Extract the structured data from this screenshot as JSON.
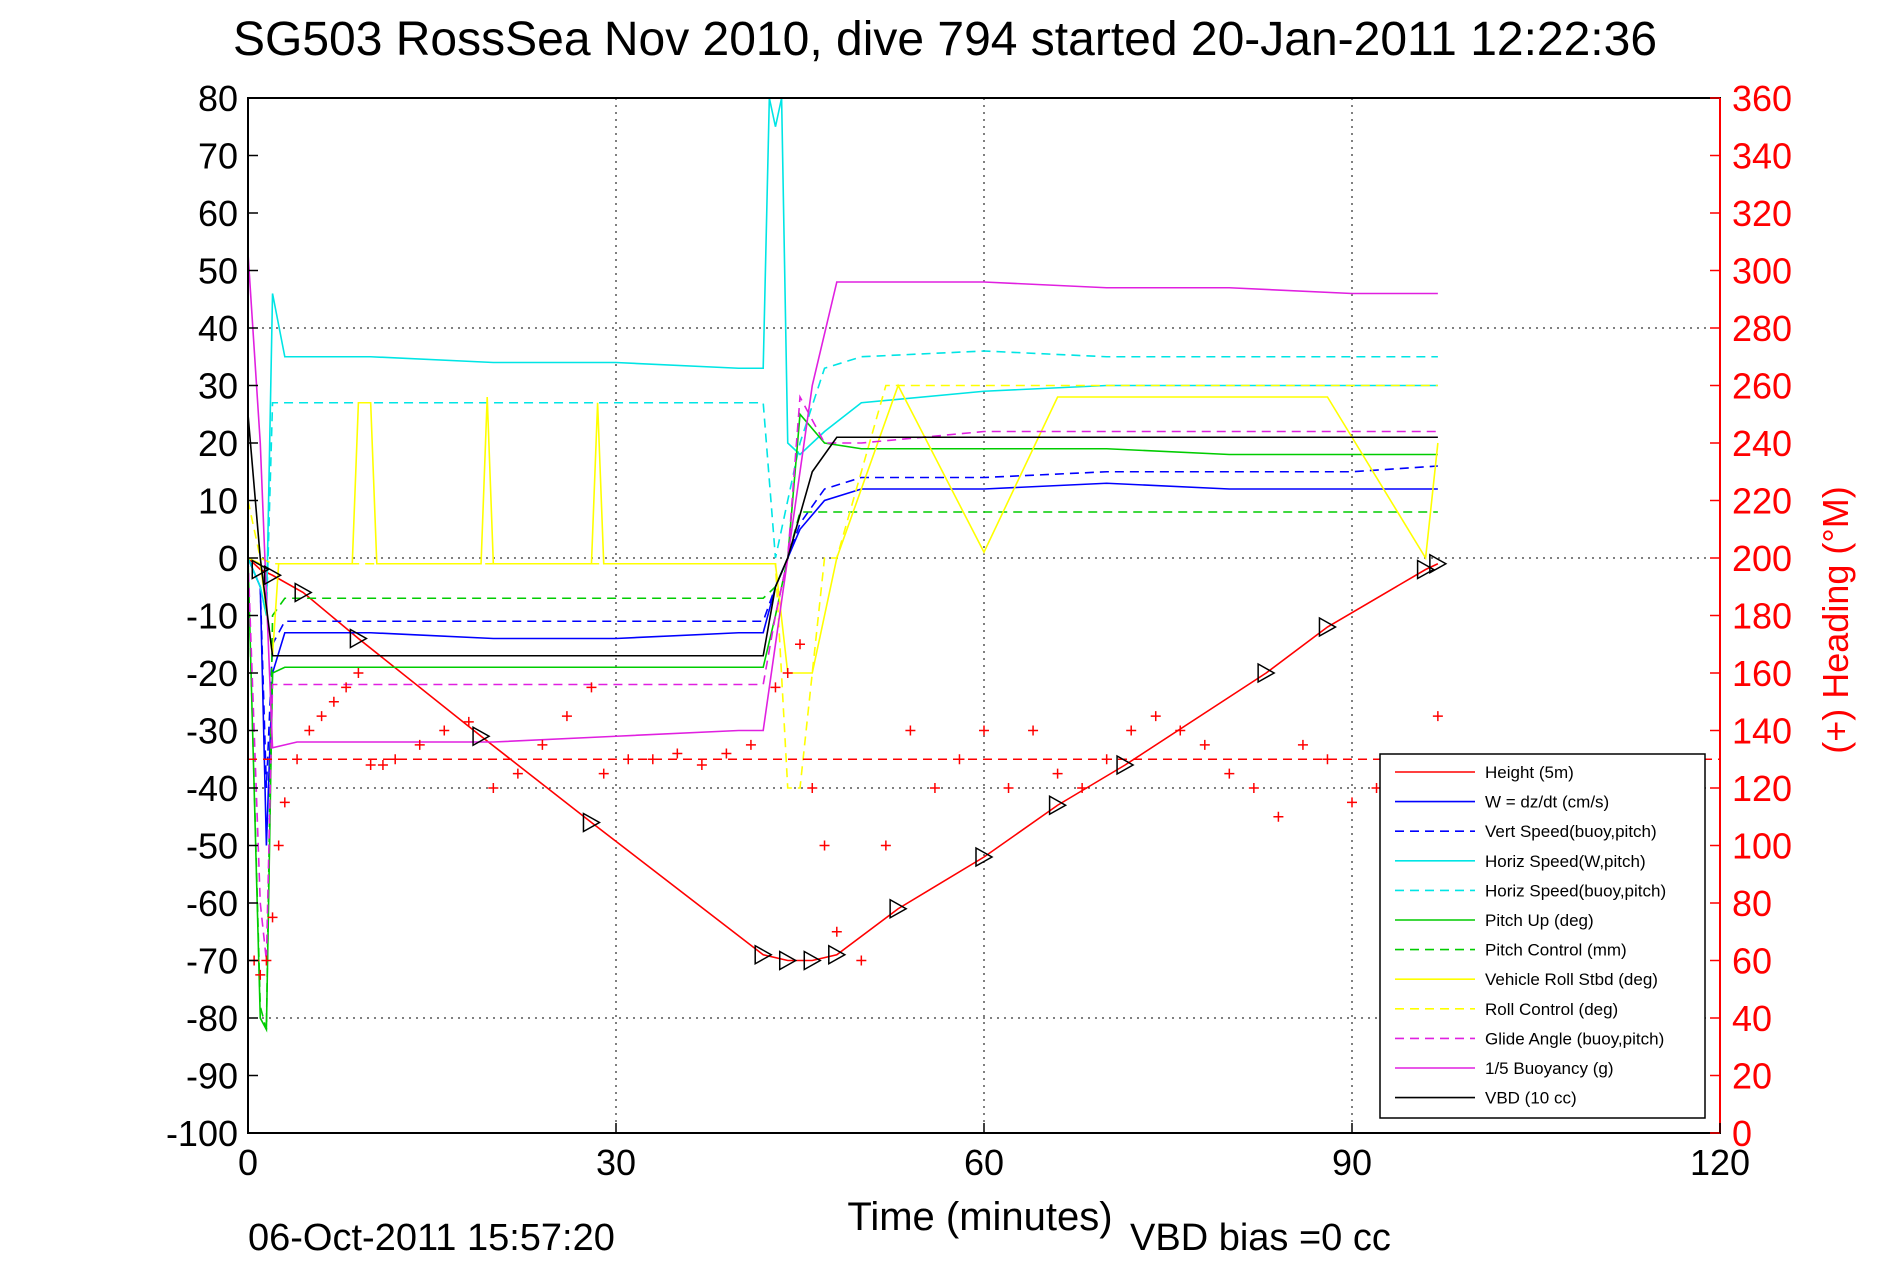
{
  "chart_data": {
    "type": "line",
    "title": "SG503 RossSea Nov 2010, dive 794 started 20-Jan-2011 12:22:36",
    "xlabel": "Time (minutes)",
    "ylabel_right": "(+) Heading (°M)",
    "footer_left": "06-Oct-2011 15:57:20",
    "footer_right": "VBD bias =0 cc",
    "xlim": [
      0,
      120
    ],
    "ylim": [
      -100,
      80
    ],
    "ylim_right": [
      0,
      360
    ],
    "x_ticks": [
      "0",
      "30",
      "60",
      "90",
      "120"
    ],
    "y_ticks": [
      "80",
      "70",
      "60",
      "50",
      "40",
      "30",
      "20",
      "10",
      "0",
      "-10",
      "-20",
      "-30",
      "-40",
      "-50",
      "-60",
      "-70",
      "-80",
      "-90",
      "-100"
    ],
    "y_ticks_right": [
      "360",
      "340",
      "320",
      "300",
      "280",
      "260",
      "240",
      "220",
      "200",
      "180",
      "160",
      "140",
      "120",
      "100",
      "80",
      "60",
      "40",
      "20",
      "0"
    ],
    "grid": true,
    "legend_position": "bottom-right",
    "colors": {
      "axis_right": "#ff0000",
      "axis_left": "#000000"
    },
    "series": [
      {
        "name": "Height (5m)",
        "color": "#ff0000",
        "style": "solid",
        "x": [
          0,
          1,
          2,
          4.5,
          9,
          19,
          28,
          42,
          44,
          46,
          48,
          53,
          60,
          66,
          71.5,
          83,
          88,
          96,
          97
        ],
        "y": [
          0,
          -2,
          -3,
          -6,
          -14,
          -31,
          -46,
          -69,
          -70,
          -70,
          -69,
          -61,
          -52,
          -43,
          -36,
          -20,
          -12,
          -2,
          -1
        ]
      },
      {
        "name": "W = dz/dt (cm/s)",
        "color": "#0000ff",
        "style": "solid",
        "x": [
          0,
          1,
          1.5,
          2,
          3,
          10,
          20,
          30,
          40,
          42,
          43,
          44,
          45,
          47,
          50,
          60,
          70,
          80,
          90,
          97
        ],
        "y": [
          0,
          -5,
          -50,
          -20,
          -13,
          -13,
          -14,
          -14,
          -13,
          -13,
          -5,
          0,
          5,
          10,
          12,
          12,
          13,
          12,
          12,
          12
        ]
      },
      {
        "name": "Vert Speed(buoy,pitch)",
        "color": "#0000ff",
        "style": "dashed",
        "x": [
          0,
          1,
          1.5,
          2,
          3,
          42,
          43,
          44,
          45,
          47,
          50,
          60,
          70,
          80,
          90,
          97
        ],
        "y": [
          0,
          -5,
          -40,
          -15,
          -11,
          -11,
          -5,
          0,
          6,
          12,
          14,
          14,
          15,
          15,
          15,
          16
        ]
      },
      {
        "name": "Horiz Speed(W,pitch)",
        "color": "#00e5e5",
        "style": "solid",
        "x": [
          0,
          1,
          1.5,
          2,
          3,
          10,
          20,
          30,
          40,
          42,
          42.5,
          43,
          43.5,
          44,
          45,
          47,
          50,
          60,
          70,
          80,
          90,
          97
        ],
        "y": [
          0,
          -5,
          -10,
          46,
          35,
          35,
          34,
          34,
          33,
          33,
          80,
          75,
          80,
          20,
          18,
          22,
          27,
          29,
          30,
          30,
          30,
          30
        ]
      },
      {
        "name": "Horiz Speed(buoy,pitch)",
        "color": "#00e5e5",
        "style": "dashed",
        "x": [
          0,
          1,
          1.5,
          2,
          3,
          42,
          43,
          44,
          45,
          47,
          50,
          60,
          70,
          80,
          90,
          97
        ],
        "y": [
          0,
          -5,
          -10,
          27,
          27,
          27,
          0,
          10,
          20,
          33,
          35,
          36,
          35,
          35,
          35,
          35
        ]
      },
      {
        "name": "Pitch Up (deg)",
        "color": "#00cc00",
        "style": "solid",
        "x": [
          0,
          1,
          1.5,
          2,
          3,
          42,
          43,
          44,
          45,
          47,
          50,
          60,
          70,
          80,
          90,
          97
        ],
        "y": [
          0,
          -80,
          -82,
          -20,
          -19,
          -19,
          -10,
          0,
          25,
          20,
          19,
          19,
          19,
          18,
          18,
          18
        ]
      },
      {
        "name": "Pitch Control (mm)",
        "color": "#00cc00",
        "style": "dashed",
        "x": [
          0,
          1,
          1.5,
          2,
          3,
          42,
          43,
          44,
          45,
          47,
          97
        ],
        "y": [
          0,
          -78,
          -82,
          -10,
          -7,
          -7,
          -5,
          0,
          8,
          8,
          8
        ]
      },
      {
        "name": "Vehicle Roll Stbd (deg)",
        "color": "#ffff00",
        "style": "solid",
        "x": [
          0,
          1,
          2,
          2.5,
          3,
          8.5,
          9,
          10,
          10.5,
          19,
          19.5,
          20,
          28,
          28.5,
          29,
          42,
          43,
          44,
          45,
          46,
          48,
          53,
          60,
          66,
          71,
          83,
          88,
          96,
          97
        ],
        "y": [
          0,
          -1,
          -17,
          -1,
          -1,
          -1,
          27,
          27,
          -1,
          -1,
          28,
          -1,
          -1,
          27,
          -1,
          -1,
          -1,
          -20,
          -20,
          -20,
          0,
          30,
          1,
          28,
          28,
          28,
          28,
          0,
          20
        ]
      },
      {
        "name": "Roll Control (deg)",
        "color": "#ffff00",
        "style": "dashed",
        "x": [
          0,
          1,
          2,
          3,
          43,
          44,
          45,
          47,
          48,
          52,
          97
        ],
        "y": [
          10,
          0,
          -1,
          -1,
          -1,
          -40,
          -40,
          0,
          0,
          30,
          30
        ]
      },
      {
        "name": "Glide Angle (buoy,pitch)",
        "color": "#e020e0",
        "style": "dashed",
        "x": [
          0,
          1,
          1.5,
          2,
          3,
          42,
          43,
          44,
          45,
          47,
          50,
          60,
          70,
          80,
          90,
          97
        ],
        "y": [
          0,
          -60,
          -70,
          -22,
          -22,
          -22,
          -10,
          0,
          28,
          20,
          20,
          22,
          22,
          22,
          22,
          22
        ]
      },
      {
        "name": "1/5 Buoyancy (g)",
        "color": "#e020e0",
        "style": "solid",
        "x": [
          0,
          1,
          2,
          4,
          10,
          20,
          30,
          40,
          42,
          44,
          46,
          48,
          60,
          70,
          80,
          90,
          97
        ],
        "y": [
          53,
          20,
          -33,
          -32,
          -32,
          -32,
          -31,
          -30,
          -30,
          0,
          30,
          48,
          48,
          47,
          47,
          46,
          46
        ]
      },
      {
        "name": "VBD (10 cc)",
        "color": "#000000",
        "style": "solid",
        "x": [
          0,
          1,
          2,
          3,
          42,
          43,
          44,
          46,
          48,
          97
        ],
        "y": [
          25,
          0,
          -17,
          -17,
          -17,
          -5,
          0,
          15,
          21,
          21
        ]
      },
      {
        "name": "Heading",
        "color": "#ff0000",
        "style": "markers",
        "axis": "right",
        "x": [
          0.5,
          1,
          1.5,
          2,
          2.5,
          3,
          4,
          5,
          6,
          7,
          8,
          9,
          10,
          11,
          12,
          14,
          16,
          18,
          20,
          22,
          24,
          26,
          28,
          29,
          31,
          33,
          35,
          37,
          39,
          41,
          43,
          44,
          45,
          46,
          47,
          48,
          50,
          52,
          54,
          56,
          58,
          60,
          62,
          64,
          66,
          68,
          70,
          72,
          74,
          76,
          78,
          80,
          82,
          84,
          86,
          88,
          90,
          92,
          94,
          96,
          97
        ],
        "y": [
          60,
          55,
          60,
          75,
          100,
          115,
          130,
          140,
          145,
          150,
          155,
          160,
          128,
          128,
          130,
          135,
          140,
          143,
          120,
          125,
          135,
          145,
          155,
          125,
          130,
          130,
          132,
          128,
          132,
          135,
          155,
          160,
          170,
          120,
          100,
          70,
          60,
          100,
          140,
          120,
          130,
          140,
          120,
          140,
          125,
          120,
          130,
          140,
          145,
          140,
          135,
          125,
          120,
          110,
          135,
          130,
          115,
          120,
          125,
          130,
          145
        ]
      },
      {
        "name": "heading-ref",
        "color": "#ff0000",
        "style": "dashed-ref",
        "axis": "right",
        "x": [
          0,
          120
        ],
        "y": [
          130,
          130
        ]
      }
    ]
  }
}
